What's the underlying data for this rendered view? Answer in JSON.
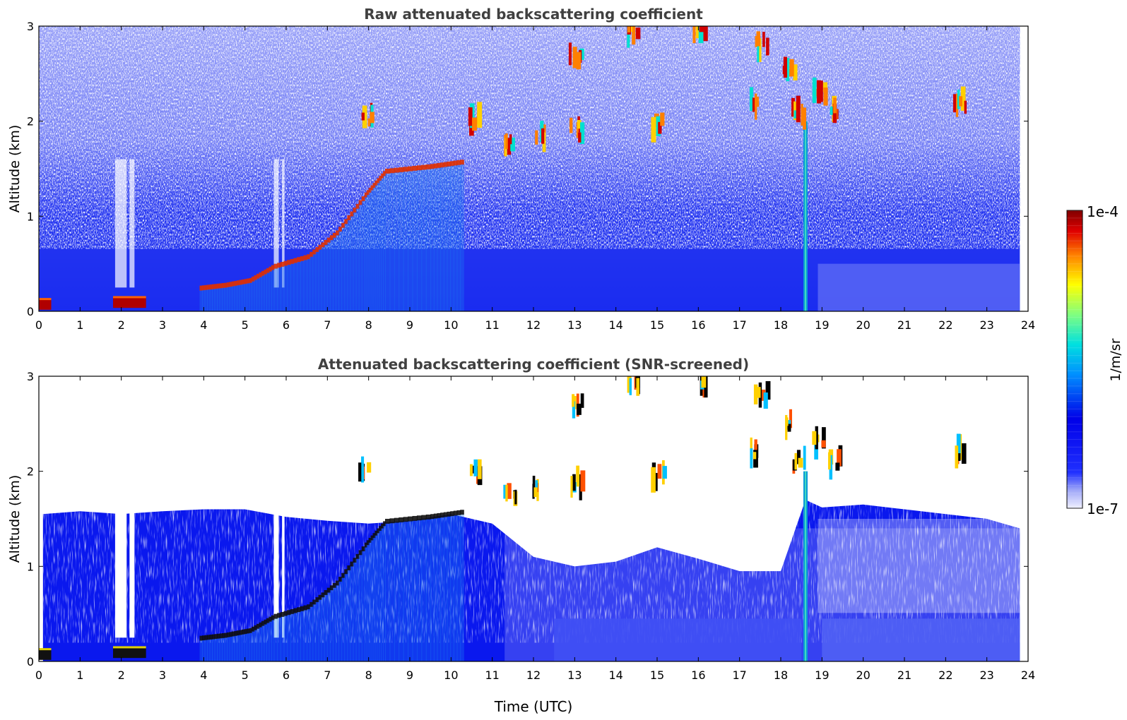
{
  "chart_data": [
    {
      "type": "heatmap",
      "title": "Raw attenuated backscattering coefficient",
      "xlabel": "",
      "ylabel": "Altitude (km)",
      "xlim": [
        0,
        24
      ],
      "ylim": [
        0,
        3
      ],
      "xticks": [
        "0",
        "1",
        "2",
        "3",
        "4",
        "5",
        "6",
        "7",
        "8",
        "9",
        "10",
        "11",
        "12",
        "13",
        "14",
        "15",
        "16",
        "17",
        "18",
        "19",
        "20",
        "21",
        "22",
        "23",
        "24"
      ],
      "yticks": [
        "0",
        "1",
        "2",
        "3"
      ],
      "data_extent_x": [
        0,
        23.8
      ],
      "features": {
        "surface_aerosols": [
          {
            "t0": 0.0,
            "t1": 0.3,
            "alt": 0.05
          },
          {
            "t0": 1.8,
            "t1": 2.6,
            "alt": 0.07
          }
        ],
        "rising_aerosol_layer": [
          {
            "t": 3.9,
            "alt": 0.22
          },
          {
            "t": 4.5,
            "alt": 0.25
          },
          {
            "t": 5.1,
            "alt": 0.3
          },
          {
            "t": 5.7,
            "alt": 0.45
          },
          {
            "t": 6.5,
            "alt": 0.55
          },
          {
            "t": 7.2,
            "alt": 0.8
          },
          {
            "t": 7.9,
            "alt": 1.2
          },
          {
            "t": 8.4,
            "alt": 1.45
          },
          {
            "t": 9.5,
            "alt": 1.5
          },
          {
            "t": 10.3,
            "alt": 1.55
          }
        ],
        "clouds": [
          {
            "t": 7.9,
            "alt": 2.0
          },
          {
            "t": 10.5,
            "alt": 2.0
          },
          {
            "t": 11.4,
            "alt": 1.75
          },
          {
            "t": 12.1,
            "alt": 1.85
          },
          {
            "t": 13.0,
            "alt": 1.9
          },
          {
            "t": 13.0,
            "alt": 2.7
          },
          {
            "t": 14.4,
            "alt": 2.95
          },
          {
            "t": 15.0,
            "alt": 1.95
          },
          {
            "t": 16.0,
            "alt": 2.95
          },
          {
            "t": 17.3,
            "alt": 2.2
          },
          {
            "t": 17.5,
            "alt": 2.8
          },
          {
            "t": 18.2,
            "alt": 2.5
          },
          {
            "t": 18.4,
            "alt": 2.1
          },
          {
            "t": 18.9,
            "alt": 2.3
          },
          {
            "t": 19.3,
            "alt": 2.1
          },
          {
            "t": 22.3,
            "alt": 2.2
          }
        ],
        "rain_column": {
          "t": 18.6,
          "alt_top": 2.0
        }
      }
    },
    {
      "type": "heatmap",
      "title": "Attenuated backscattering coefficient (SNR-screened)",
      "xlabel": "Time (UTC)",
      "ylabel": "Altitude (km)",
      "xlim": [
        0,
        24
      ],
      "ylim": [
        0,
        3
      ],
      "xticks": [
        "0",
        "1",
        "2",
        "3",
        "4",
        "5",
        "6",
        "7",
        "8",
        "9",
        "10",
        "11",
        "12",
        "13",
        "14",
        "15",
        "16",
        "17",
        "18",
        "19",
        "20",
        "21",
        "22",
        "23",
        "24"
      ],
      "yticks": [
        "0",
        "1",
        "2",
        "3"
      ],
      "data_extent_x": [
        0,
        23.8
      ]
    }
  ],
  "colorbar": {
    "label": "1/m/sr",
    "max_label": "1e-4",
    "min_label": "1e-7",
    "scale": "log",
    "colormap": [
      "#f0f0ff",
      "#a0a8f8",
      "#2030ff",
      "#0000e8",
      "#0090ff",
      "#00e0e0",
      "#80ff80",
      "#ffff00",
      "#ff8000",
      "#e00000",
      "#800000"
    ]
  }
}
